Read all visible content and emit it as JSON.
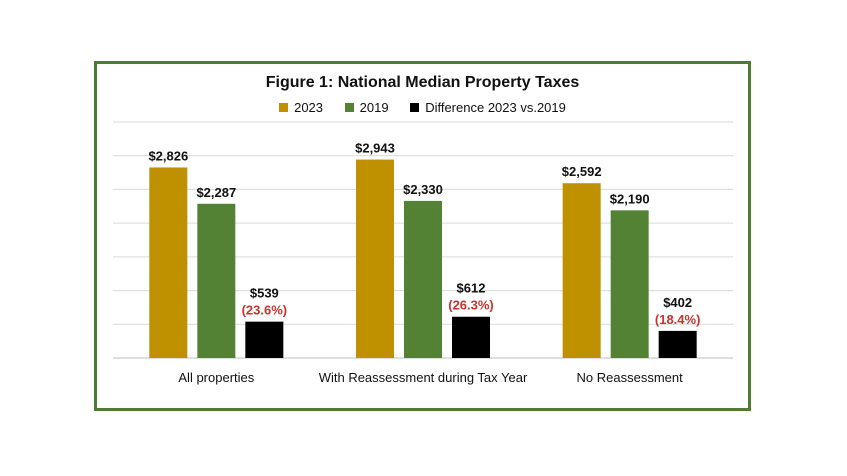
{
  "chart_data": {
    "type": "bar",
    "title": "Figure 1: National Median Property Taxes",
    "categories": [
      "All properties",
      "With Reassessment during Tax Year",
      "No Reassessment"
    ],
    "series": [
      {
        "name": "2023",
        "color": "#bf9000",
        "values": [
          2826,
          2943,
          2592
        ],
        "labels": [
          "$2,826",
          "$2,943",
          "$2,592"
        ]
      },
      {
        "name": "2019",
        "color": "#548235",
        "values": [
          2287,
          2330,
          2190
        ],
        "labels": [
          "$2,287",
          "$2,330",
          "$2,190"
        ]
      },
      {
        "name": "Difference 2023 vs.2019",
        "color": "#000000",
        "values": [
          539,
          612,
          402
        ],
        "labels": [
          "$539",
          "$612",
          "$402"
        ],
        "pct_labels": [
          "(23.6%)",
          "(26.3%)",
          "(18.4%)"
        ],
        "pct_color": "#c8332e"
      }
    ],
    "ylim": [
      0,
      3500
    ],
    "grid": true,
    "legend_position": "top-center"
  }
}
